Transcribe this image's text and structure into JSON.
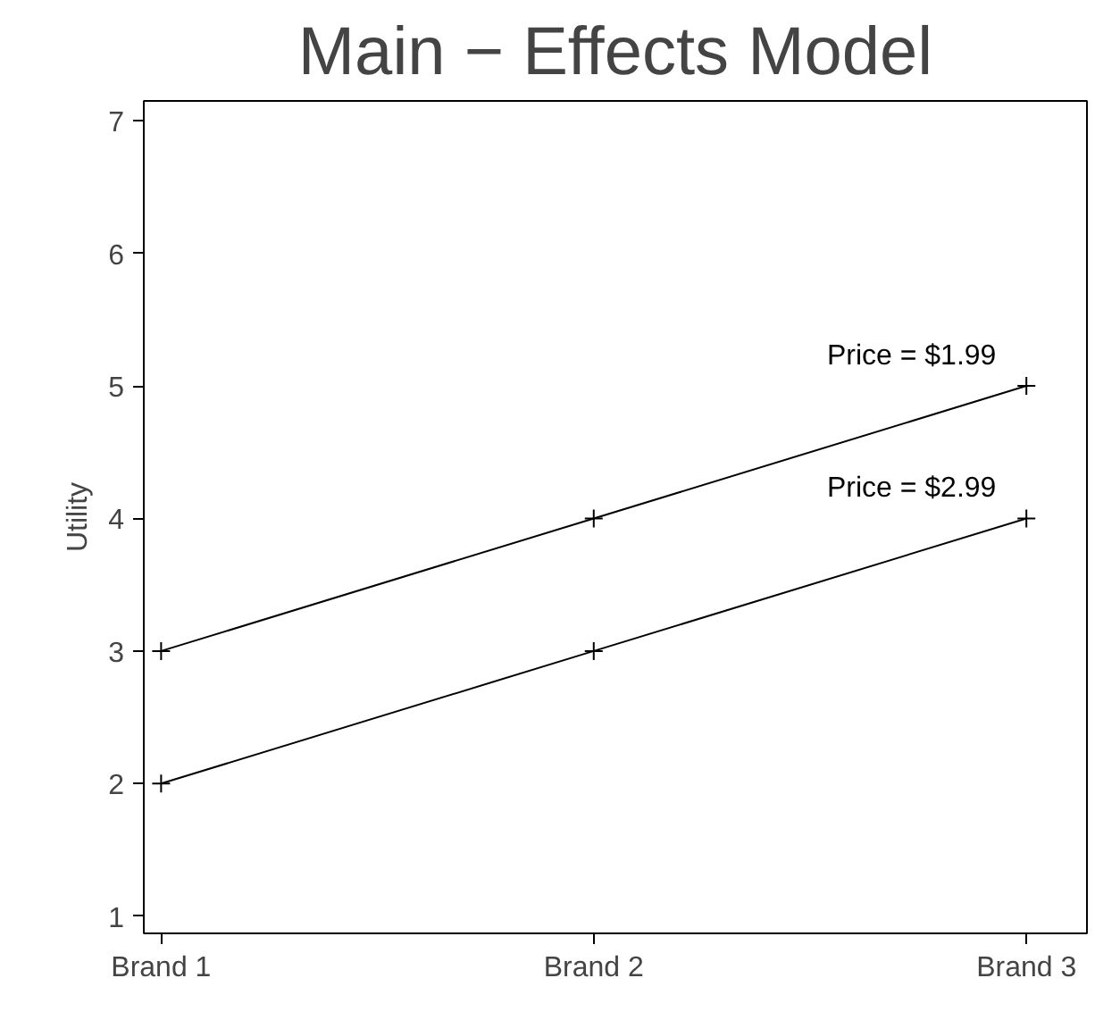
{
  "chart_data": {
    "type": "line",
    "title": "Main − Effects Model",
    "ylabel": "Utility",
    "categories": [
      "Brand 1",
      "Brand 2",
      "Brand 3"
    ],
    "series": [
      {
        "name": "Price  =  $1.99",
        "color": "#000000",
        "values": [
          3,
          4,
          5
        ]
      },
      {
        "name": "Price  =  $2.99",
        "color": "#000000",
        "values": [
          2,
          3,
          4
        ]
      }
    ],
    "ylim": [
      0.87,
      7.15
    ],
    "yticks": [
      1,
      2,
      3,
      4,
      5,
      6,
      7
    ],
    "grid": false,
    "marker": "cross",
    "line_style": "solid"
  }
}
